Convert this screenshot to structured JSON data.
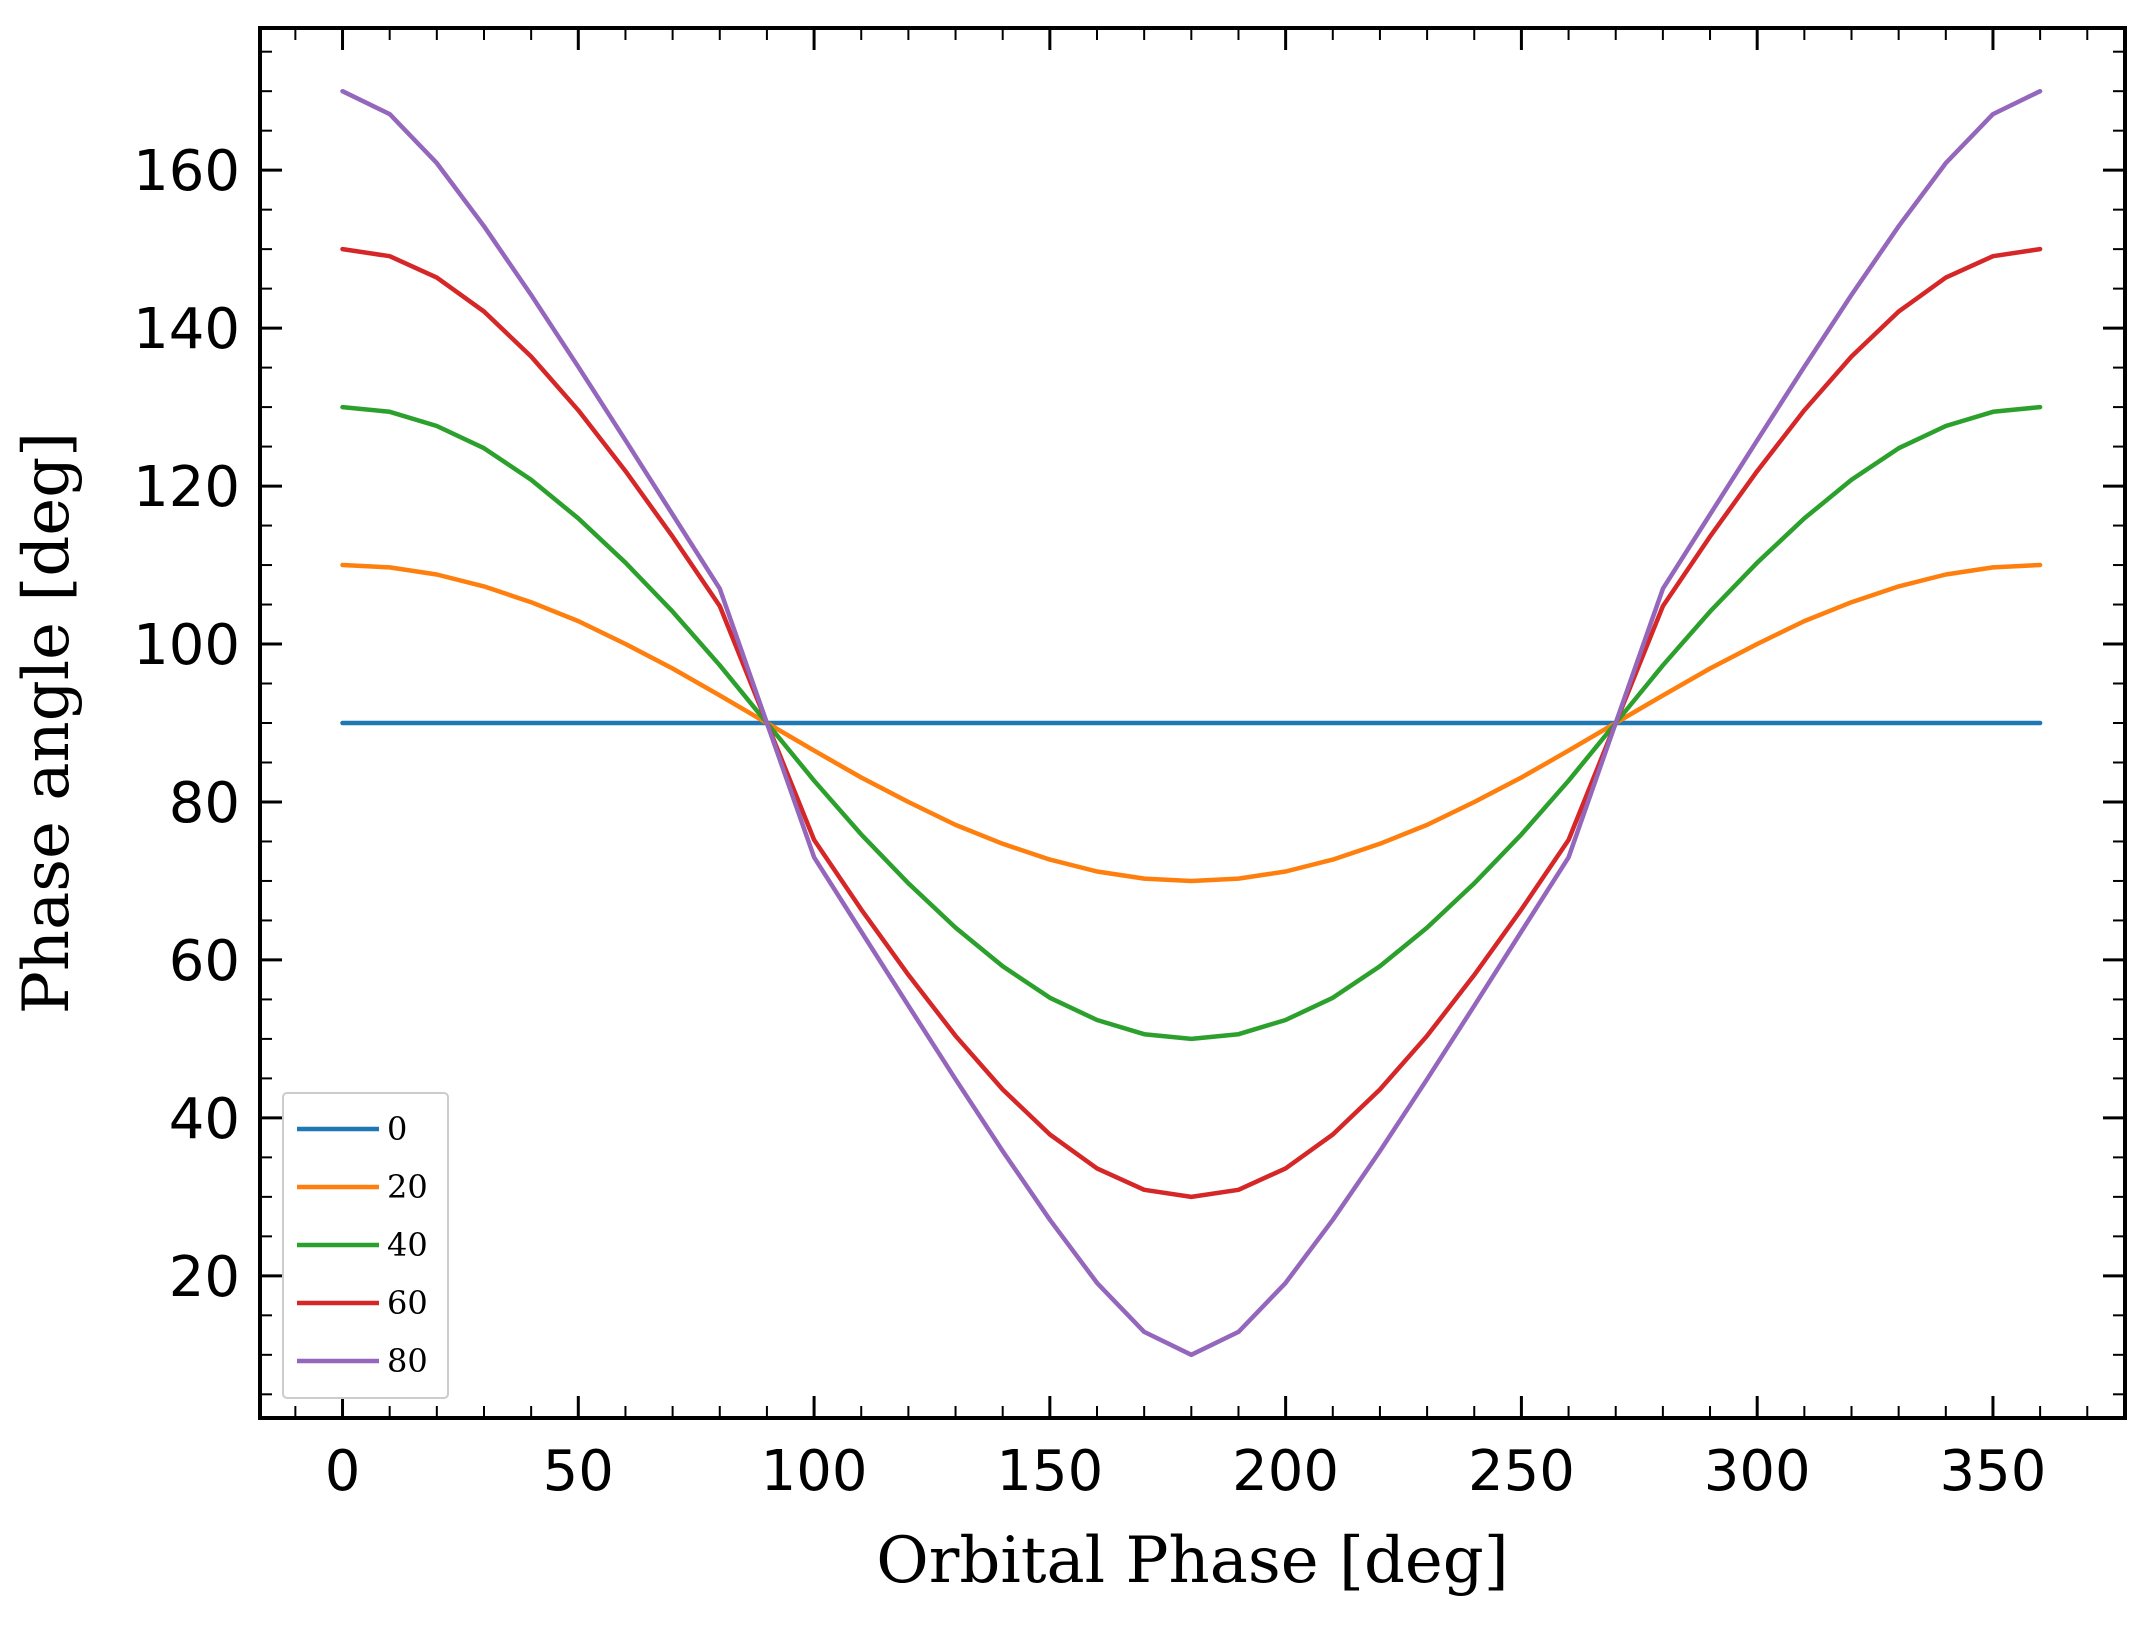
{
  "chart_data": {
    "type": "line",
    "xlabel": "Orbital Phase [deg]",
    "ylabel": "Phase angle [deg]",
    "xlim": [
      -17.5,
      378
    ],
    "ylim": [
      2,
      178
    ],
    "x_ticks": [
      0,
      50,
      100,
      150,
      200,
      250,
      300,
      350
    ],
    "y_ticks": [
      20,
      40,
      60,
      80,
      100,
      120,
      140,
      160
    ],
    "x_minor_step": 10,
    "y_minor_step": 5,
    "grid": false,
    "legend_position": "lower-left",
    "x_range": [
      0,
      360
    ],
    "x_step": 10,
    "series": [
      {
        "name": "0",
        "color": "#1f77b4",
        "values": [
          90,
          90,
          90,
          90,
          90,
          90,
          90,
          90,
          90,
          90,
          90,
          90,
          90,
          90,
          90,
          90,
          90,
          90,
          90,
          90,
          90,
          90,
          90,
          90,
          90,
          90,
          90,
          90,
          90,
          90,
          90,
          90,
          90,
          90,
          90,
          90,
          90
        ]
      },
      {
        "name": "20",
        "color": "#ff7f0e",
        "values": [
          110,
          109.7,
          108.8,
          107.3,
          105.3,
          102.9,
          100,
          96.9,
          93.5,
          90,
          86.5,
          83.1,
          80,
          77.1,
          74.7,
          72.7,
          71.2,
          70.3,
          70,
          70.3,
          71.2,
          72.7,
          74.7,
          77.1,
          80,
          83.1,
          86.5,
          90,
          93.5,
          96.9,
          100,
          102.9,
          105.3,
          107.3,
          108.8,
          109.7,
          110
        ]
      },
      {
        "name": "40",
        "color": "#2ca02c",
        "values": [
          130,
          129.4,
          127.6,
          124.8,
          120.8,
          115.9,
          110.3,
          104.1,
          97.3,
          90,
          82.7,
          75.9,
          69.7,
          64.1,
          59.2,
          55.2,
          52.4,
          50.6,
          50,
          50.6,
          52.4,
          55.2,
          59.2,
          64.1,
          69.7,
          75.9,
          82.7,
          90,
          97.3,
          104.1,
          110.3,
          115.9,
          120.8,
          124.8,
          127.6,
          129.4,
          130
        ]
      },
      {
        "name": "60",
        "color": "#d62728",
        "values": [
          150,
          149.1,
          146.4,
          142.1,
          136.4,
          129.6,
          121.9,
          113.6,
          104.8,
          90,
          75.2,
          66.4,
          58.1,
          50.4,
          43.6,
          37.9,
          33.6,
          30.9,
          30,
          30.9,
          33.6,
          37.9,
          43.6,
          50.4,
          58.1,
          66.4,
          75.2,
          90,
          104.8,
          113.6,
          121.9,
          129.6,
          136.4,
          142.1,
          146.4,
          149.1,
          150
        ]
      },
      {
        "name": "80",
        "color": "#9467bd",
        "values": [
          170,
          167.1,
          160.9,
          152.9,
          144.2,
          135.1,
          125.8,
          116.4,
          107,
          90,
          73,
          63.6,
          54.2,
          44.9,
          35.8,
          27.1,
          19.1,
          12.9,
          10,
          12.9,
          19.1,
          27.1,
          35.8,
          44.9,
          54.2,
          63.6,
          73,
          90,
          107,
          116.4,
          125.8,
          135.1,
          144.2,
          152.9,
          160.9,
          167.1,
          170
        ]
      }
    ]
  }
}
